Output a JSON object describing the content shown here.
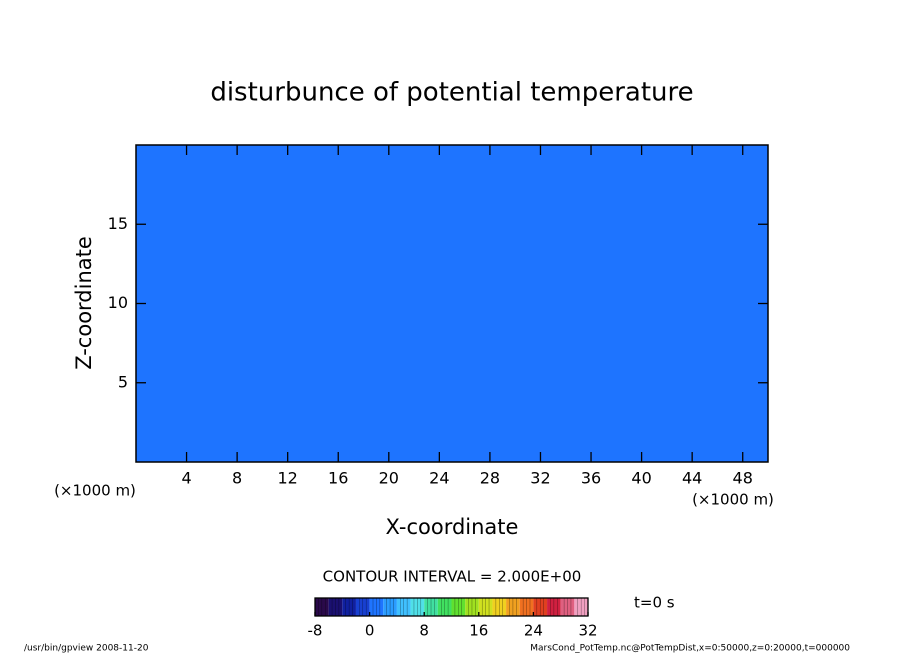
{
  "chart_data": {
    "type": "contour",
    "title": "disturbunce of potential temperature",
    "x_label": "X-coordinate",
    "y_label": "Z-coordinate",
    "x_unit": "(×1000 m)",
    "y_unit": "(×1000 m)",
    "xlim": [
      0,
      50
    ],
    "xticks": [
      4,
      8,
      12,
      16,
      20,
      24,
      28,
      32,
      36,
      40,
      44,
      48
    ],
    "ylim": [
      0,
      20
    ],
    "yticks": [
      5,
      10,
      15
    ],
    "field_value": 0,
    "contour_interval_text": "CONTOUR INTERVAL = 2.000E+00",
    "time_label": "t=0 s",
    "colorbar": {
      "levels": [
        -8,
        -6,
        -4,
        -2,
        0,
        2,
        4,
        6,
        8,
        10,
        12,
        14,
        16,
        18,
        20,
        22,
        24,
        26,
        28,
        30,
        32
      ],
      "colors": [
        "#2a0a4a",
        "#1a1070",
        "#1020a0",
        "#1840d0",
        "#1e74ff",
        "#2a9cff",
        "#40c0ff",
        "#50e0e8",
        "#40e0a0",
        "#40e060",
        "#60e030",
        "#a0e020",
        "#d0e020",
        "#f0d020",
        "#f0a020",
        "#f07020",
        "#e04020",
        "#d02040",
        "#e06080",
        "#f0a0c0"
      ],
      "ticks": [
        -8,
        0,
        8,
        16,
        24,
        32
      ]
    },
    "footer_left": "/usr/bin/gpview  2008-11-20",
    "footer_right": "MarsCond_PotTemp.nc@PotTempDist,x=0:50000,z=0:20000,t=000000"
  }
}
